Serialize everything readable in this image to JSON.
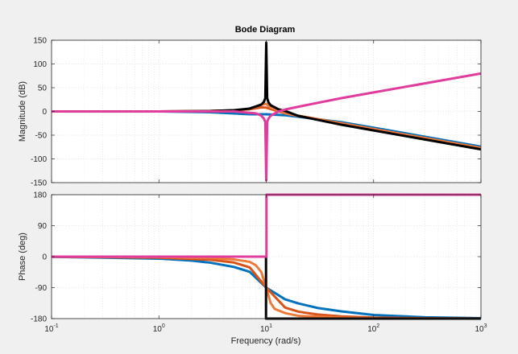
{
  "chart_data": {
    "type": "line",
    "title": "Bode Diagram",
    "xlabel": "Frequency  (rad/s)",
    "xscale": "log",
    "xlim": [
      0.1,
      1000
    ],
    "x_tick_base": "10",
    "x_tick_exponents": [
      "-1",
      "0",
      "1",
      "2",
      "3"
    ],
    "x_tick_values": [
      0.1,
      1,
      10,
      100,
      1000
    ],
    "grid": "on (major and minor, dotted)",
    "legend": "none",
    "panels": [
      {
        "name": "magnitude",
        "ylabel": "Magnitude (dB)",
        "ylim": [
          -150,
          150
        ],
        "yticks": [
          -150,
          -100,
          -50,
          0,
          50,
          100,
          150
        ],
        "series": [
          {
            "color": "#0072BD",
            "x": [
              0.1,
              1,
              3,
              5,
              7,
              10,
              15,
              20,
              50,
              100,
              1000
            ],
            "y": [
              0,
              -0.1,
              -1.7,
              -4.2,
              -6.0,
              -6.0,
              -8.0,
              -11.3,
              -22.6,
              -34.2,
              -74.2
            ]
          },
          {
            "color": "#D95319",
            "x": [
              0.1,
              1,
              3,
              5,
              7,
              9,
              10,
              11,
              15,
              20,
              50,
              100,
              1000
            ],
            "y": [
              0,
              0,
              0.8,
              2.2,
              4.6,
              8.4,
              8.0,
              5.0,
              -4.0,
              -9.0,
              -25.0,
              -37.0,
              -77.0
            ]
          },
          {
            "color": "#EE7A3A",
            "x": [
              0.1,
              1,
              3,
              5,
              7,
              9,
              10,
              11,
              15,
              20,
              50,
              100,
              1000
            ],
            "y": [
              0,
              0,
              0.8,
              2.4,
              5.6,
              14.0,
              16.0,
              8.0,
              -4.0,
              -9.5,
              -25.0,
              -37.0,
              -77.0
            ]
          },
          {
            "color": "#000000",
            "x": [
              0.1,
              1,
              3,
              5,
              7,
              9,
              9.5,
              9.8,
              10,
              10.2,
              10.5,
              11,
              13,
              15,
              20,
              50,
              100,
              1000
            ],
            "y": [
              0,
              0,
              0.8,
              2.5,
              6.0,
              14.5,
              20.0,
              28.0,
              145.0,
              28.0,
              19.0,
              13.0,
              4.5,
              1.0,
              -9.5,
              -28.0,
              -40.0,
              -80.0
            ]
          },
          {
            "color": "#E03C9C",
            "x": [
              0.1,
              1,
              5,
              8,
              9,
              9.5,
              9.8,
              10,
              10.2,
              10.5,
              11,
              13,
              15,
              20,
              50,
              100,
              1000
            ],
            "y": [
              0,
              0,
              0,
              -4.0,
              -9.0,
              -15.0,
              -22.0,
              -145.0,
              -22.0,
              -15.0,
              -9.0,
              0,
              4.0,
              10.0,
              28.0,
              40.0,
              80.0
            ]
          }
        ]
      },
      {
        "name": "phase",
        "ylabel": "Phase (deg)",
        "ylim": [
          -180,
          180
        ],
        "yticks": [
          -180,
          -90,
          0,
          90,
          180
        ],
        "series": [
          {
            "color": "#0072BD",
            "x": [
              0.1,
              1,
              2,
              3,
              5,
              7,
              10,
              15,
              20,
              30,
              50,
              100,
              300,
              1000
            ],
            "y": [
              -0.6,
              -5.7,
              -11.5,
              -17.4,
              -30.0,
              -44.0,
              -90.0,
              -124.0,
              -136.0,
              -149.0,
              -159.0,
              -169.5,
              -176.2,
              -178.9
            ]
          },
          {
            "color": "#D95319",
            "x": [
              0.1,
              1,
              3,
              5,
              7,
              10,
              15,
              20,
              30,
              50,
              100,
              300,
              1000
            ],
            "y": [
              -0.3,
              -3.0,
              -9.0,
              -17.0,
              -31.0,
              -90.0,
              -148.0,
              -160.0,
              -168.0,
              -173.5,
              -177.0,
              -179.0,
              -179.7
            ]
          },
          {
            "color": "#EE7A3A",
            "x": [
              0.1,
              1,
              3,
              5,
              7,
              8,
              9,
              10,
              11,
              12,
              15,
              20,
              50,
              100,
              1000
            ],
            "y": [
              -0.1,
              -1.0,
              -4.0,
              -8.0,
              -15.0,
              -25.0,
              -45.0,
              -90.0,
              -135.0,
              -152.0,
              -164.0,
              -172.0,
              -177.5,
              -179.0,
              -179.9
            ]
          },
          {
            "color": "#000000",
            "x": [
              0.1,
              9.95,
              9.95,
              1000
            ],
            "y": [
              0,
              0,
              -180,
              -180
            ]
          },
          {
            "color": "#E03C9C",
            "x": [
              0.1,
              10.05,
              10.05,
              1000
            ],
            "y": [
              0,
              0,
              180,
              180
            ]
          }
        ]
      }
    ]
  }
}
